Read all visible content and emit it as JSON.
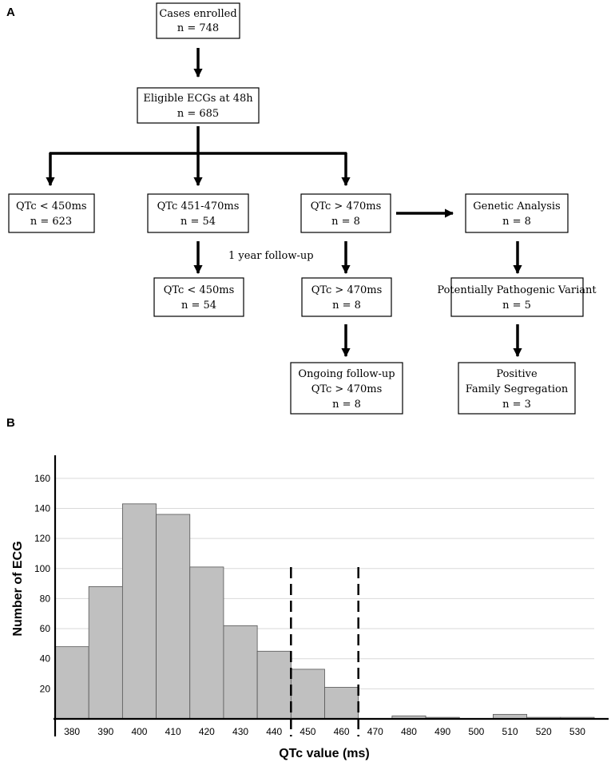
{
  "panel_a": {
    "label": "A",
    "boxes": {
      "cases": {
        "lines": [
          "Cases enrolled",
          "n = 748"
        ]
      },
      "eligible": {
        "lines": [
          "Eligible ECGs at 48h",
          "n = 685"
        ]
      },
      "lt450": {
        "lines": [
          "QTc < 450ms",
          "n = 623"
        ]
      },
      "mid": {
        "lines": [
          "QTc  451-470ms",
          "n = 54"
        ]
      },
      "gt470": {
        "lines": [
          "QTc > 470ms",
          "n = 8"
        ]
      },
      "genetic": {
        "lines": [
          "Genetic Analysis",
          "n = 8"
        ]
      },
      "mid_fu": {
        "lines": [
          "QTc  < 450ms",
          "n = 54"
        ]
      },
      "gt470_fu": {
        "lines": [
          "QTc > 470ms",
          "n = 8"
        ]
      },
      "variant": {
        "lines": [
          "Potentially Pathogenic Variant",
          "n = 5"
        ]
      },
      "ongoing": {
        "lines": [
          "Ongoing follow-up",
          "QTc > 470ms",
          "n = 8"
        ]
      },
      "segregation": {
        "lines": [
          "Positive",
          "Family Segregation",
          "n = 3"
        ]
      }
    },
    "followup_note": "1 year follow-up"
  },
  "panel_b_label": "B",
  "chart_data": {
    "type": "bar",
    "title": "",
    "xlabel": "QTc value (ms)",
    "ylabel": "Number of ECG",
    "categories": [
      "380",
      "390",
      "400",
      "410",
      "420",
      "430",
      "440",
      "450",
      "460",
      "470",
      "480",
      "490",
      "500",
      "510",
      "520",
      "530"
    ],
    "values": [
      48,
      88,
      143,
      136,
      101,
      62,
      45,
      33,
      21,
      0,
      2,
      1,
      0,
      3,
      1,
      1
    ],
    "ylim": [
      0,
      170
    ],
    "yticks": [
      20,
      40,
      60,
      80,
      100,
      120,
      140,
      160
    ],
    "grid": true,
    "reference_lines_at": [
      445,
      465
    ],
    "bar_color": "#c0c0c0",
    "bar_edge_color": "#555555",
    "grid_color": "#d9d9d9"
  }
}
